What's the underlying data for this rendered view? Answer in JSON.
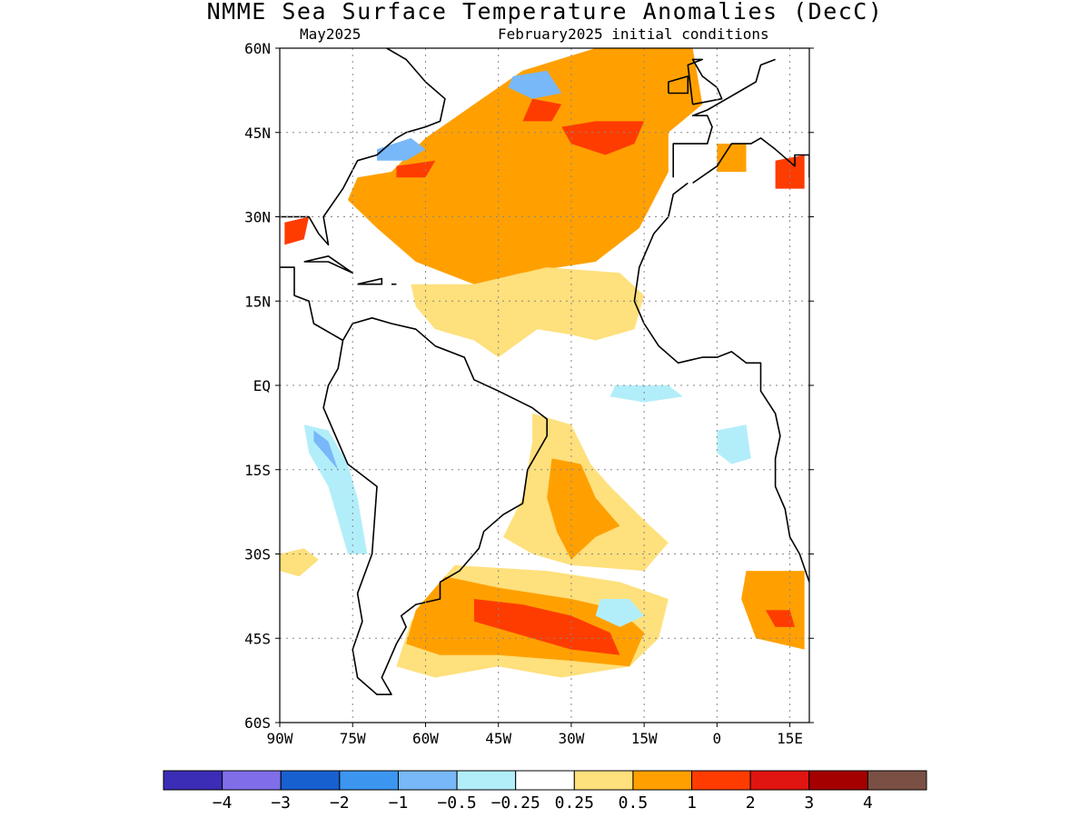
{
  "title": "NMME Sea Surface Temperature Anomalies (DecC)",
  "subtitle_left": "May2025",
  "subtitle_right": "February2025 initial conditions",
  "map": {
    "lon_range": [
      -90,
      19
    ],
    "lat_range": [
      -60,
      60
    ],
    "lat_ticks": [
      {
        "value": 60,
        "label": "60N"
      },
      {
        "value": 45,
        "label": "45N"
      },
      {
        "value": 30,
        "label": "30N"
      },
      {
        "value": 15,
        "label": "15N"
      },
      {
        "value": 0,
        "label": "EQ"
      },
      {
        "value": -15,
        "label": "15S"
      },
      {
        "value": -30,
        "label": "30S"
      },
      {
        "value": -45,
        "label": "45S"
      },
      {
        "value": -60,
        "label": "60S"
      }
    ],
    "lon_ticks": [
      {
        "value": -90,
        "label": "90W"
      },
      {
        "value": -75,
        "label": "75W"
      },
      {
        "value": -60,
        "label": "60W"
      },
      {
        "value": -45,
        "label": "45W"
      },
      {
        "value": -30,
        "label": "30W"
      },
      {
        "value": -15,
        "label": "15W"
      },
      {
        "value": 0,
        "label": "0"
      },
      {
        "value": 15,
        "label": "15E"
      }
    ],
    "grid": "dotted"
  },
  "colorbar": {
    "colors": [
      "#3b2db5",
      "#7f6ee8",
      "#1760d0",
      "#3c96f0",
      "#78b8f8",
      "#b2eefa",
      "#ffffff",
      "#fee07c",
      "#ffa000",
      "#ff3c00",
      "#e01410",
      "#a50000",
      "#7b5044"
    ],
    "labels": [
      "−4",
      "−3",
      "−2",
      "−1",
      "−0.5",
      "−0.25",
      "0.25",
      "0.5",
      "1",
      "2",
      "3",
      "4"
    ]
  },
  "anomaly_regions": [
    {
      "level": "0.5",
      "points": [
        [
          -67,
          38
        ],
        [
          -60,
          44
        ],
        [
          -50,
          50
        ],
        [
          -40,
          56
        ],
        [
          -25,
          60
        ],
        [
          -5,
          60
        ],
        [
          -3,
          50
        ],
        [
          -10,
          45
        ],
        [
          -10,
          38
        ],
        [
          -16,
          28
        ],
        [
          -25,
          22
        ],
        [
          -40,
          20
        ],
        [
          -50,
          18
        ],
        [
          -62,
          22
        ],
        [
          -70,
          28
        ],
        [
          -76,
          33
        ],
        [
          -74,
          37
        ]
      ]
    },
    {
      "level": "0.25",
      "points": [
        [
          -63,
          18
        ],
        [
          -50,
          18
        ],
        [
          -35,
          21
        ],
        [
          -20,
          20
        ],
        [
          -15,
          16
        ],
        [
          -17,
          10
        ],
        [
          -25,
          8
        ],
        [
          -30,
          9
        ],
        [
          -37,
          10
        ],
        [
          -45,
          5
        ],
        [
          -50,
          8
        ],
        [
          -58,
          10
        ],
        [
          -62,
          14
        ]
      ]
    },
    {
      "level": "0.25",
      "points": [
        [
          -38,
          -5
        ],
        [
          -30,
          -7
        ],
        [
          -26,
          -14
        ],
        [
          -22,
          -18
        ],
        [
          -15,
          -24
        ],
        [
          -10,
          -28
        ],
        [
          -15,
          -33
        ],
        [
          -30,
          -32
        ],
        [
          -38,
          -30
        ],
        [
          -44,
          -27
        ],
        [
          -40,
          -20
        ],
        [
          -38,
          -10
        ]
      ]
    },
    {
      "level": "0.5",
      "points": [
        [
          -34,
          -13
        ],
        [
          -28,
          -14
        ],
        [
          -25,
          -20
        ],
        [
          -20,
          -25
        ],
        [
          -25,
          -27
        ],
        [
          -30,
          -31
        ],
        [
          -33,
          -26
        ],
        [
          -35,
          -20
        ]
      ]
    },
    {
      "level": "0.25",
      "points": [
        [
          -54,
          -32
        ],
        [
          -35,
          -33
        ],
        [
          -20,
          -35
        ],
        [
          -10,
          -38
        ],
        [
          -12,
          -45
        ],
        [
          -18,
          -50
        ],
        [
          -32,
          -52
        ],
        [
          -45,
          -50
        ],
        [
          -58,
          -52
        ],
        [
          -66,
          -50
        ],
        [
          -63,
          -42
        ],
        [
          -58,
          -36
        ]
      ]
    },
    {
      "level": "0.5",
      "points": [
        [
          -56,
          -34
        ],
        [
          -45,
          -36
        ],
        [
          -30,
          -38
        ],
        [
          -20,
          -40
        ],
        [
          -15,
          -44
        ],
        [
          -18,
          -50
        ],
        [
          -30,
          -49
        ],
        [
          -45,
          -48
        ],
        [
          -57,
          -48
        ],
        [
          -64,
          -46
        ],
        [
          -62,
          -40
        ]
      ]
    },
    {
      "level": "1",
      "points": [
        [
          -50,
          -38
        ],
        [
          -40,
          -39
        ],
        [
          -30,
          -41
        ],
        [
          -22,
          -44
        ],
        [
          -20,
          -48
        ],
        [
          -30,
          -47
        ],
        [
          -42,
          -44
        ],
        [
          -50,
          -42
        ]
      ]
    },
    {
      "level": "1",
      "points": [
        [
          -38,
          51
        ],
        [
          -32,
          50
        ],
        [
          -34,
          47
        ],
        [
          -40,
          47
        ]
      ]
    },
    {
      "level": "1",
      "points": [
        [
          -32,
          46
        ],
        [
          -25,
          47
        ],
        [
          -15,
          47
        ],
        [
          -17,
          43
        ],
        [
          -23,
          41
        ],
        [
          -30,
          43
        ]
      ]
    },
    {
      "level": "1",
      "points": [
        [
          -66,
          39
        ],
        [
          -58,
          40
        ],
        [
          -60,
          37
        ],
        [
          -66,
          37
        ]
      ]
    },
    {
      "level": "-0.5",
      "points": [
        [
          -70,
          42
        ],
        [
          -63,
          44
        ],
        [
          -60,
          42
        ],
        [
          -64,
          40
        ],
        [
          -70,
          40
        ]
      ]
    },
    {
      "level": "-0.5",
      "points": [
        [
          -42,
          55
        ],
        [
          -35,
          56
        ],
        [
          -32,
          52
        ],
        [
          -38,
          51
        ],
        [
          -43,
          53
        ]
      ]
    },
    {
      "level": "-0.25",
      "points": [
        [
          -85,
          -7
        ],
        [
          -80,
          -8
        ],
        [
          -76,
          -14
        ],
        [
          -74,
          -20
        ],
        [
          -72,
          -30
        ],
        [
          -76,
          -30
        ],
        [
          -80,
          -18
        ],
        [
          -84,
          -12
        ]
      ]
    },
    {
      "level": "-0.5",
      "points": [
        [
          -83,
          -8
        ],
        [
          -80,
          -10
        ],
        [
          -78,
          -15
        ],
        [
          -80,
          -13
        ],
        [
          -83,
          -10
        ]
      ]
    },
    {
      "level": "-0.25",
      "points": [
        [
          -21,
          0
        ],
        [
          -10,
          0
        ],
        [
          -7,
          -2
        ],
        [
          -15,
          -3
        ],
        [
          -22,
          -2
        ]
      ]
    },
    {
      "level": "-0.25",
      "points": [
        [
          0,
          -8
        ],
        [
          6,
          -7
        ],
        [
          7,
          -13
        ],
        [
          3,
          -14
        ],
        [
          0,
          -12
        ]
      ]
    },
    {
      "level": "-0.25",
      "points": [
        [
          -24,
          -38
        ],
        [
          -18,
          -38
        ],
        [
          -15,
          -41
        ],
        [
          -20,
          -43
        ],
        [
          -25,
          -41
        ]
      ]
    },
    {
      "level": "0.5",
      "points": [
        [
          6,
          -33
        ],
        [
          18,
          -33
        ],
        [
          18,
          -47
        ],
        [
          8,
          -45
        ],
        [
          5,
          -38
        ]
      ]
    },
    {
      "level": "1",
      "points": [
        [
          10,
          -40
        ],
        [
          15,
          -40
        ],
        [
          16,
          -43
        ],
        [
          12,
          -43
        ]
      ]
    },
    {
      "level": "1",
      "points": [
        [
          -89,
          29
        ],
        [
          -84,
          30
        ],
        [
          -85,
          26
        ],
        [
          -89,
          25
        ]
      ]
    },
    {
      "level": "1",
      "points": [
        [
          12,
          40
        ],
        [
          18,
          41
        ],
        [
          18,
          35
        ],
        [
          12,
          35
        ]
      ]
    },
    {
      "level": "0.5",
      "points": [
        [
          0,
          43
        ],
        [
          6,
          43
        ],
        [
          6,
          38
        ],
        [
          0,
          38
        ]
      ]
    },
    {
      "level": "0.25",
      "points": [
        [
          -90,
          -30
        ],
        [
          -85,
          -29
        ],
        [
          -82,
          -31
        ],
        [
          -86,
          -34
        ],
        [
          -90,
          -33
        ]
      ]
    }
  ]
}
